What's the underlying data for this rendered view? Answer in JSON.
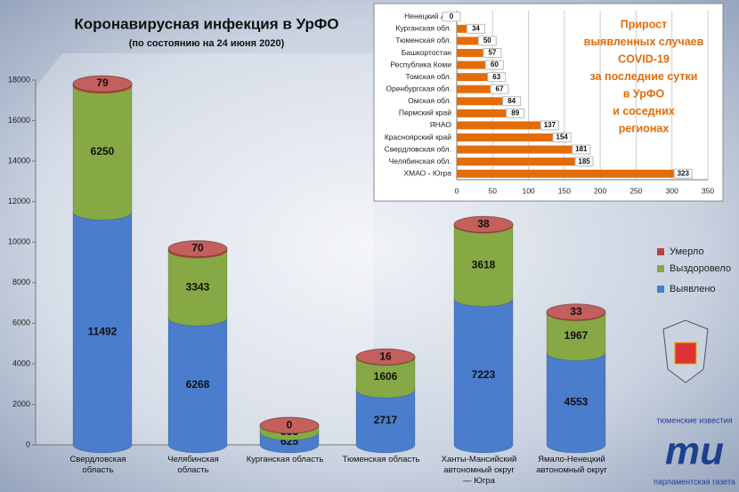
{
  "chart_data": [
    {
      "type": "cylinder-stacked-bar",
      "title": "Коронавирусная инфекция в УрФО",
      "subtitle": "(по состоянию на 24 июня 2020)",
      "categories": [
        [
          "Свердловская",
          "область"
        ],
        [
          "Челябинская",
          "область"
        ],
        [
          "Курганская область"
        ],
        [
          "Тюменская область"
        ],
        [
          "Ханты-Мансийский",
          "автономный округ",
          "— Югра"
        ],
        [
          "Ямало-Ненецкий",
          "автономный округ"
        ]
      ],
      "series": [
        {
          "name": "Выявлено",
          "color": "#4a7dcc",
          "values": [
            11492,
            6268,
            625,
            2717,
            7223,
            4553
          ]
        },
        {
          "name": "Выздоровело",
          "color": "#86a845",
          "values": [
            6250,
            3343,
            333,
            1606,
            3618,
            1967
          ]
        },
        {
          "name": "Умерло",
          "color": "#b8433f",
          "values": [
            79,
            70,
            0,
            16,
            38,
            33
          ]
        }
      ],
      "ylim": [
        0,
        18000
      ],
      "yticks": [
        0,
        2000,
        4000,
        6000,
        8000,
        10000,
        12000,
        14000,
        16000,
        18000
      ],
      "legend": "right"
    },
    {
      "type": "hbar",
      "title": [
        "Прирост",
        "выявленных случаев",
        "COVID-19",
        "за последние сутки",
        "в УрФО",
        "и соседних",
        "регионах"
      ],
      "categories": [
        "Ненецкий АО",
        "Курганская обл.",
        "Тюменская обл.",
        "Башкортостан",
        "Республика Коми",
        "Томская обл.",
        "Оренбургская обл.",
        "Омская обл.",
        "Пермский край",
        "ЯНАО",
        "Красноярский край",
        "Свердловская обл.",
        "Челябинская обл.",
        "ХМАО - Югра"
      ],
      "values": [
        0,
        34,
        50,
        57,
        60,
        63,
        67,
        84,
        89,
        137,
        154,
        181,
        185,
        323
      ],
      "color": "#e36c09",
      "xlim": [
        0,
        350
      ],
      "xticks": [
        0,
        50,
        100,
        150,
        200,
        250,
        300,
        350
      ],
      "grid": true
    }
  ],
  "branding": {
    "top": "тюменские известия",
    "logo": "ти",
    "bottom": "парламентская газета"
  }
}
